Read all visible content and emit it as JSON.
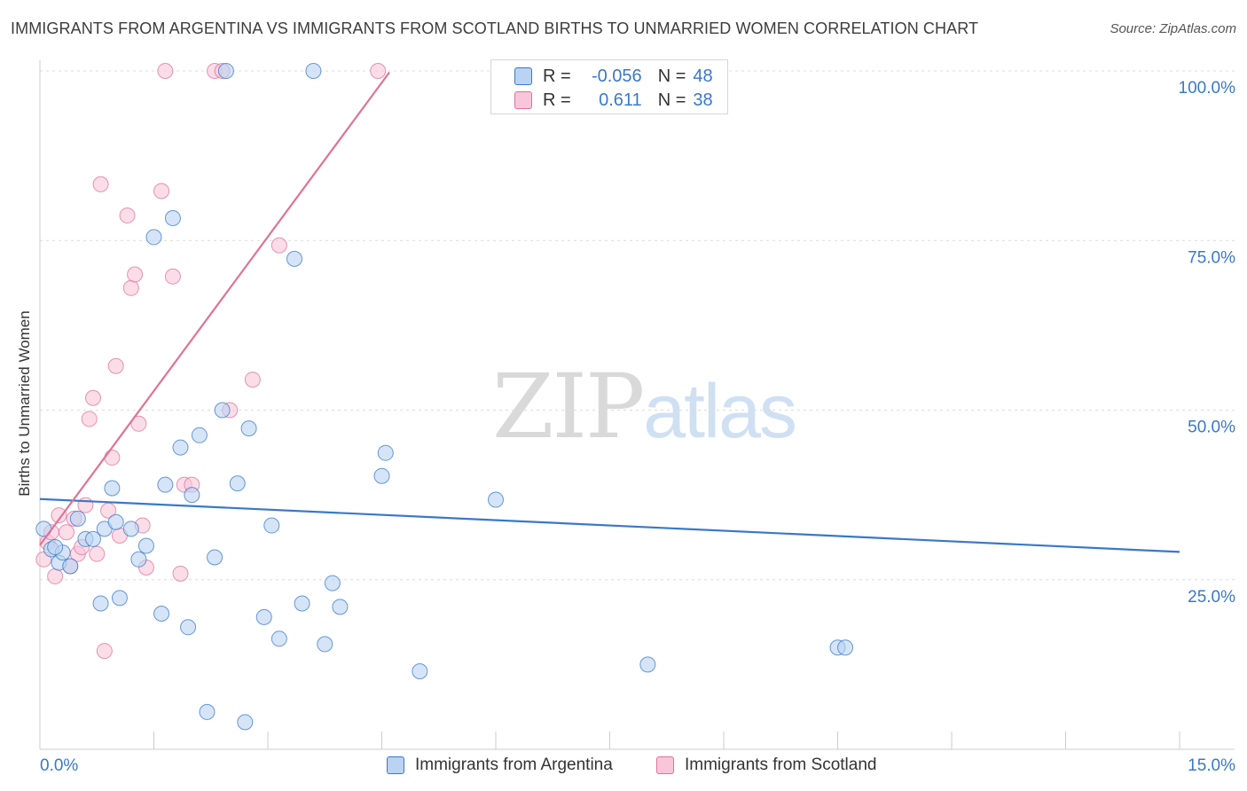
{
  "title": "IMMIGRANTS FROM ARGENTINA VS IMMIGRANTS FROM SCOTLAND BIRTHS TO UNMARRIED WOMEN CORRELATION CHART",
  "source": "Source: ZipAtlas.com",
  "watermark": {
    "zip": "ZIP",
    "atlas": "atlas"
  },
  "legend": {
    "rows": [
      {
        "r_label": "R =",
        "r_value": "-0.056",
        "n_label": "N =",
        "n_value": "48"
      },
      {
        "r_label": "R =",
        "r_value": "0.611",
        "n_label": "N =",
        "n_value": "38"
      }
    ]
  },
  "chart_data": {
    "type": "scatter",
    "title": "IMMIGRANTS FROM ARGENTINA VS IMMIGRANTS FROM SCOTLAND BIRTHS TO UNMARRIED WOMEN CORRELATION CHART",
    "xlabel": "",
    "ylabel": "Births to Unmarried Women",
    "xlim": [
      0,
      15
    ],
    "ylim": [
      0,
      102
    ],
    "x_tick_labels": [
      "0.0%",
      "15.0%"
    ],
    "y_tick_labels": [
      "25.0%",
      "50.0%",
      "75.0%",
      "100.0%"
    ],
    "y_tick_values": [
      25,
      50,
      75,
      100
    ],
    "grid": true,
    "series": [
      {
        "name": "Immigrants from Argentina",
        "color": "#3a78c9",
        "fill": "#b9d3f1",
        "r": -0.056,
        "n": 48,
        "trend": {
          "x": [
            0.0,
            15.0
          ],
          "y": [
            36.9,
            29.1
          ]
        },
        "points": [
          [
            0.05,
            32.5
          ],
          [
            0.15,
            29.5
          ],
          [
            0.25,
            27.5
          ],
          [
            0.3,
            29
          ],
          [
            0.4,
            27
          ],
          [
            0.5,
            34
          ],
          [
            0.6,
            31
          ],
          [
            0.7,
            31
          ],
          [
            0.8,
            21.5
          ],
          [
            0.85,
            32.5
          ],
          [
            0.95,
            38.5
          ],
          [
            1.0,
            33.5
          ],
          [
            1.05,
            22.3
          ],
          [
            1.2,
            32.5
          ],
          [
            1.3,
            28
          ],
          [
            1.4,
            30
          ],
          [
            1.5,
            75.5
          ],
          [
            1.6,
            20
          ],
          [
            1.65,
            39
          ],
          [
            1.75,
            78.3
          ],
          [
            1.85,
            44.5
          ],
          [
            1.95,
            18
          ],
          [
            2.0,
            37.5
          ],
          [
            2.1,
            46.3
          ],
          [
            2.2,
            5.5
          ],
          [
            2.3,
            28.3
          ],
          [
            2.4,
            50
          ],
          [
            2.45,
            100
          ],
          [
            2.6,
            39.2
          ],
          [
            2.7,
            4
          ],
          [
            2.75,
            47.3
          ],
          [
            2.95,
            19.5
          ],
          [
            3.05,
            33
          ],
          [
            3.15,
            16.3
          ],
          [
            3.35,
            72.3
          ],
          [
            3.45,
            21.5
          ],
          [
            3.6,
            100
          ],
          [
            3.75,
            15.5
          ],
          [
            3.85,
            24.5
          ],
          [
            3.95,
            21
          ],
          [
            4.5,
            40.3
          ],
          [
            4.55,
            43.7
          ],
          [
            5.0,
            11.5
          ],
          [
            6.0,
            36.8
          ],
          [
            8.0,
            12.5
          ],
          [
            10.5,
            15
          ],
          [
            10.6,
            15
          ],
          [
            0.2,
            29.8
          ]
        ]
      },
      {
        "name": "Immigrants from Scotland",
        "color": "#e07298",
        "fill": "#f8c6d8",
        "r": 0.611,
        "n": 38,
        "trend": {
          "x": [
            0.0,
            4.6
          ],
          "y": [
            30.1,
            99.8
          ]
        },
        "points": [
          [
            0.05,
            28
          ],
          [
            0.1,
            30.5
          ],
          [
            0.15,
            32
          ],
          [
            0.2,
            25.5
          ],
          [
            0.25,
            34.5
          ],
          [
            0.35,
            32
          ],
          [
            0.4,
            27
          ],
          [
            0.45,
            34
          ],
          [
            0.5,
            28.8
          ],
          [
            0.55,
            29.8
          ],
          [
            0.6,
            36
          ],
          [
            0.65,
            48.7
          ],
          [
            0.7,
            51.8
          ],
          [
            0.75,
            28.8
          ],
          [
            0.8,
            83.3
          ],
          [
            0.85,
            14.5
          ],
          [
            0.9,
            35.2
          ],
          [
            0.95,
            43
          ],
          [
            1.0,
            56.5
          ],
          [
            1.05,
            31.5
          ],
          [
            1.15,
            78.7
          ],
          [
            1.2,
            68
          ],
          [
            1.25,
            70
          ],
          [
            1.3,
            48
          ],
          [
            1.35,
            33
          ],
          [
            1.4,
            26.8
          ],
          [
            1.6,
            82.3
          ],
          [
            1.75,
            69.7
          ],
          [
            1.85,
            25.9
          ],
          [
            1.9,
            39
          ],
          [
            2.0,
            39
          ],
          [
            2.3,
            100
          ],
          [
            2.4,
            100
          ],
          [
            2.5,
            50
          ],
          [
            2.8,
            54.5
          ],
          [
            3.15,
            74.3
          ],
          [
            1.65,
            100
          ],
          [
            4.45,
            100
          ]
        ]
      }
    ]
  }
}
